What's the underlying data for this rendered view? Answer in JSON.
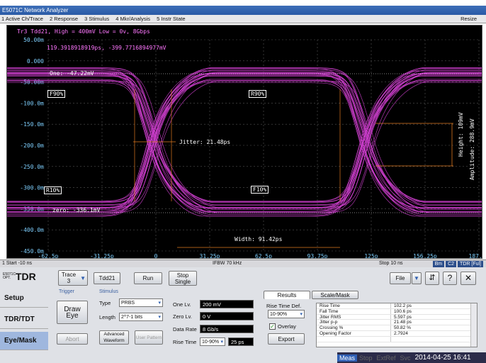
{
  "window": {
    "title": "E5071C Network Analyzer",
    "resize": "Resize"
  },
  "menu": [
    "1 Active Ch/Trace",
    "2 Response",
    "3 Stimulus",
    "4 Mkr/Analysis",
    "5 Instr State"
  ],
  "trace": {
    "header": "Tr3 Tdd21, High = 400mV Low = 0v, 8Gbps",
    "cursor": "119.3918918919ps, -399.7716894977mV"
  },
  "y_ticks": [
    "50.00m",
    "0.000",
    "-50.00m",
    "-100.0m",
    "-150.0m",
    "-200.0m",
    "-250.0m",
    "-300.0m",
    "-350.0m",
    "-400.0m",
    "-450.0m"
  ],
  "x_ticks": [
    "-62.5p",
    "-31.25p",
    "0",
    "31.25p",
    "62.5p",
    "93.75p",
    "125p",
    "156.25p",
    "187.5p"
  ],
  "annotations": {
    "one": "One: -47.22mV",
    "zero": "zero: -336.1mV",
    "jitter": "Jitter: 21.48ps",
    "width": "Width: 91.42ps",
    "height": "Height: 109mV",
    "amplitude": "Amplitude: 288.9mV",
    "f90_left": "F90%",
    "f90_right": "R90%",
    "r10_left": "R10%",
    "f10_right": "F10%"
  },
  "colors": {
    "trace": "#d040d0",
    "marker": "#e07a20",
    "grid": "#555555",
    "text_cyan": "#7fd0ff",
    "text_white": "#ffffff"
  },
  "status": {
    "start": "1  Start -10 ns",
    "ifbw": "IFBW 70 kHz",
    "stop": "Stop 10 ns",
    "badges": [
      "Bm",
      "C2",
      "TDR [Ful]"
    ]
  },
  "toolbar": {
    "logo_small": "E5071C OPT.",
    "logo": "TDR",
    "trace_btn": "Trace 3",
    "trace_param": "Tdd21",
    "run": "Run",
    "stop_single": "Stop Single",
    "file": "File",
    "help": "?",
    "close": "✕",
    "updown": "⇵"
  },
  "tabs": {
    "setup": "Setup",
    "tdr_tdt": "TDR/TDT",
    "eye_mask": "Eye/Mask"
  },
  "trigger": {
    "group": "Trigger",
    "draw_eye": "Draw Eye",
    "abort": "Abort"
  },
  "stimulus": {
    "group": "Stimulus",
    "type_label": "Type",
    "type_value": "PRBS",
    "length_label": "Length",
    "length_value": "2^7-1 bits",
    "adv_waveform": "Advanced Waveform",
    "user_pattern": "User Pattern",
    "one_label": "One Lv.",
    "one_value": "200 mV",
    "zero_label": "Zero Lv.",
    "zero_value": "0 V",
    "rate_label": "Data Rate",
    "rate_value": "8 Gb/s",
    "rise_label": "Rise Time",
    "rise_sel": "10-90%",
    "rise_value": "25 ps"
  },
  "results": {
    "tab_results": "Results",
    "tab_scale": "Scale/Mask",
    "rise_def_label": "Rise Time Def.",
    "rise_def_value": "10-90%",
    "overlay": "Overlay",
    "export": "Export",
    "rows": [
      [
        "Rise Time",
        "102.2 ps"
      ],
      [
        "Fall Time",
        "100.6 ps"
      ],
      [
        "Jitter RMS",
        "5.597 ps"
      ],
      [
        "Jitter p-p",
        "21.48 ps"
      ],
      [
        "Crossing %",
        "50.82 %"
      ],
      [
        "Opening Factor",
        "2.7924"
      ],
      [
        "",
        "  "
      ]
    ]
  },
  "footer": {
    "meas": "Meas",
    "stop": "Stop",
    "extref": "ExtRef",
    "svc": "Svc",
    "datetime": "2014-04-25 16:41"
  }
}
